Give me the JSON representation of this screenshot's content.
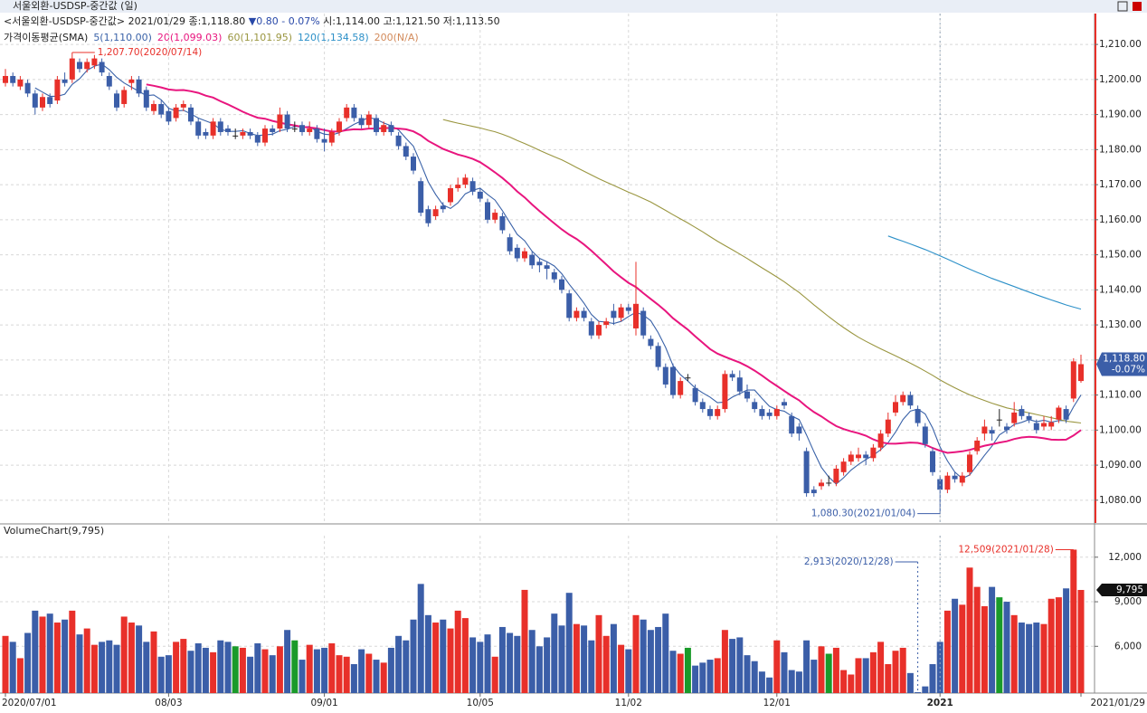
{
  "chart_data": [
    {
      "type": "candlestick",
      "title": "서울외환-USDSP-중간값 (일)",
      "info": "<서울외환-USDSP-중간값> 2021/01/29 종:1,118.80",
      "change": "▼0.80  - 0.07%",
      "ohlc_text": "시:1,114.00 고:1,121.50 저:1,113.50",
      "ma_title": "가격이동평균(SMA)",
      "ma": [
        {
          "name": "5(1,110.00)",
          "period": 5,
          "color": "#3a62a8"
        },
        {
          "name": "20(1,099.03)",
          "period": 20,
          "color": "#e8157e"
        },
        {
          "name": "60(1,101.95)",
          "period": 60,
          "color": "#9a9640"
        },
        {
          "name": "120(1,134.58)",
          "period": 120,
          "color": "#2c90c8"
        },
        {
          "name": "200(N/A)",
          "period": 200,
          "color": "#d28a5a"
        }
      ],
      "up_color": "#e8302a",
      "down_color": "#3b5ea8",
      "annotations": [
        "1,207.70(2020/07/14)",
        "1,080.30(2021/01/04)"
      ],
      "last_label": "1,118.80",
      "change_label": "-0.07%",
      "ylim": [
        1073.5,
        1218.8
      ],
      "yticks": [
        {
          "value": 1080,
          "label": "1,080.00"
        },
        {
          "value": 1090,
          "label": "1,090.00"
        },
        {
          "value": 1100,
          "label": "1,100.00"
        },
        {
          "value": 1110,
          "label": "1,110.00"
        },
        {
          "value": 1120,
          "label": "1,120.00"
        },
        {
          "value": 1130,
          "label": "1,130.00"
        },
        {
          "value": 1140,
          "label": "1,140.00"
        },
        {
          "value": 1150,
          "label": "1,150.00"
        },
        {
          "value": 1160,
          "label": "1,160.00"
        },
        {
          "value": 1170,
          "label": "1,170.00"
        },
        {
          "value": 1180,
          "label": "1,180.00"
        },
        {
          "value": 1190,
          "label": "1,190.00"
        },
        {
          "value": 1200,
          "label": "1,200.00"
        },
        {
          "value": 1210,
          "label": "1,210.00"
        }
      ],
      "grid": true,
      "ohlc": [
        [
          1199,
          1203,
          1198,
          1201
        ],
        [
          1201,
          1202,
          1198,
          1199
        ],
        [
          1198,
          1201,
          1197,
          1200
        ],
        [
          1199,
          1200,
          1195,
          1196
        ],
        [
          1196,
          1197,
          1190,
          1192
        ],
        [
          1192,
          1196,
          1191,
          1195
        ],
        [
          1195,
          1196,
          1192,
          1193
        ],
        [
          1194,
          1201,
          1193,
          1200
        ],
        [
          1200,
          1202,
          1198,
          1199
        ],
        [
          1200,
          1207.7,
          1199,
          1206
        ],
        [
          1205,
          1206,
          1202,
          1203
        ],
        [
          1203,
          1206,
          1202,
          1205
        ],
        [
          1204,
          1207,
          1203,
          1206
        ],
        [
          1205,
          1206,
          1201,
          1202
        ],
        [
          1201,
          1202,
          1197,
          1198
        ],
        [
          1196,
          1197,
          1191,
          1192
        ],
        [
          1193,
          1198,
          1192,
          1197
        ],
        [
          1199,
          1201,
          1197,
          1200
        ],
        [
          1200,
          1201,
          1195,
          1196
        ],
        [
          1197,
          1198,
          1191,
          1192
        ],
        [
          1191,
          1194,
          1190,
          1193
        ],
        [
          1193,
          1194,
          1189,
          1190
        ],
        [
          1191,
          1192,
          1187,
          1188
        ],
        [
          1189,
          1193,
          1188,
          1192
        ],
        [
          1192,
          1194,
          1191,
          1193
        ],
        [
          1192,
          1193,
          1187,
          1188
        ],
        [
          1188,
          1189,
          1183,
          1184
        ],
        [
          1185,
          1186,
          1183,
          1184
        ],
        [
          1184,
          1189,
          1183,
          1188
        ],
        [
          1188,
          1189,
          1184,
          1185
        ],
        [
          1186,
          1187,
          1184,
          1185
        ],
        [
          1184,
          1186,
          1183,
          1184
        ],
        [
          1184,
          1186,
          1183,
          1185
        ],
        [
          1185,
          1186,
          1183,
          1184
        ],
        [
          1184,
          1185,
          1181,
          1182
        ],
        [
          1182,
          1187,
          1181,
          1186
        ],
        [
          1186,
          1187,
          1184,
          1185
        ],
        [
          1186,
          1192,
          1185,
          1190
        ],
        [
          1190,
          1191,
          1185,
          1186
        ],
        [
          1186,
          1188,
          1185,
          1186
        ],
        [
          1187,
          1188,
          1184,
          1185
        ],
        [
          1185,
          1188,
          1184,
          1186
        ],
        [
          1186,
          1187,
          1182,
          1183
        ],
        [
          1183,
          1186,
          1179.5,
          1182
        ],
        [
          1182,
          1186,
          1181,
          1185
        ],
        [
          1185,
          1189,
          1184,
          1188
        ],
        [
          1189,
          1193,
          1188,
          1192
        ],
        [
          1192,
          1193,
          1188,
          1189
        ],
        [
          1189,
          1190,
          1186,
          1187
        ],
        [
          1187,
          1191,
          1186,
          1190
        ],
        [
          1189,
          1190,
          1184,
          1185
        ],
        [
          1185,
          1188,
          1184,
          1187
        ],
        [
          1187,
          1188,
          1184,
          1185
        ],
        [
          1184,
          1185,
          1180,
          1181
        ],
        [
          1181,
          1182,
          1177,
          1178
        ],
        [
          1178,
          1179,
          1173,
          1174
        ],
        [
          1171,
          1172,
          1161,
          1162
        ],
        [
          1163,
          1164,
          1158,
          1159
        ],
        [
          1161,
          1164,
          1160,
          1163
        ],
        [
          1164,
          1165,
          1162,
          1163
        ],
        [
          1165,
          1170,
          1164,
          1169
        ],
        [
          1169,
          1172,
          1168,
          1170
        ],
        [
          1170,
          1173,
          1169,
          1172
        ],
        [
          1171,
          1172,
          1167,
          1168
        ],
        [
          1168,
          1169,
          1165,
          1166
        ],
        [
          1165,
          1166,
          1159,
          1160
        ],
        [
          1160,
          1163,
          1159,
          1162
        ],
        [
          1161,
          1162,
          1156,
          1157
        ],
        [
          1155,
          1156,
          1150,
          1151
        ],
        [
          1152,
          1153,
          1148,
          1149
        ],
        [
          1149,
          1152,
          1148,
          1151
        ],
        [
          1150,
          1151,
          1146,
          1147
        ],
        [
          1148,
          1149,
          1145,
          1147
        ],
        [
          1147,
          1148,
          1143,
          1146
        ],
        [
          1145,
          1146,
          1142,
          1143
        ],
        [
          1143,
          1144,
          1139,
          1140
        ],
        [
          1139,
          1140,
          1131,
          1132
        ],
        [
          1132,
          1135,
          1131,
          1134
        ],
        [
          1134,
          1135,
          1131,
          1132
        ],
        [
          1131,
          1132,
          1126,
          1127
        ],
        [
          1127,
          1131,
          1126,
          1130
        ],
        [
          1130,
          1132,
          1129,
          1131
        ],
        [
          1134,
          1136,
          1130,
          1132
        ],
        [
          1132,
          1136,
          1131,
          1135
        ],
        [
          1135,
          1136,
          1133,
          1134
        ],
        [
          1129,
          1148,
          1127,
          1136
        ],
        [
          1134,
          1135,
          1126,
          1127
        ],
        [
          1126,
          1127,
          1123,
          1124
        ],
        [
          1124,
          1125,
          1117,
          1118
        ],
        [
          1118,
          1119,
          1112,
          1113
        ],
        [
          1118,
          1119,
          1109,
          1110
        ],
        [
          1110,
          1115,
          1109,
          1114
        ],
        [
          1115,
          1116,
          1114,
          1115
        ],
        [
          1112,
          1113,
          1107,
          1108
        ],
        [
          1108,
          1109,
          1105,
          1106
        ],
        [
          1106,
          1107,
          1103,
          1104
        ],
        [
          1104,
          1107,
          1103,
          1106
        ],
        [
          1106,
          1117,
          1105,
          1116
        ],
        [
          1116,
          1117,
          1114,
          1115
        ],
        [
          1115,
          1117,
          1110,
          1111
        ],
        [
          1111,
          1113,
          1108,
          1109
        ],
        [
          1108,
          1109,
          1105,
          1106
        ],
        [
          1106,
          1107,
          1103,
          1104
        ],
        [
          1105,
          1106,
          1103,
          1104
        ],
        [
          1104,
          1107,
          1103,
          1106
        ],
        [
          1108,
          1109,
          1106,
          1107
        ],
        [
          1104,
          1105,
          1098,
          1099
        ],
        [
          1101,
          1102,
          1097,
          1099
        ],
        [
          1094,
          1095,
          1081,
          1082
        ],
        [
          1083,
          1084,
          1081,
          1082
        ],
        [
          1084,
          1086,
          1083,
          1085
        ],
        [
          1085,
          1087,
          1084,
          1085
        ],
        [
          1085,
          1090,
          1084,
          1089
        ],
        [
          1088,
          1092,
          1087,
          1091
        ],
        [
          1091,
          1094,
          1090,
          1093
        ],
        [
          1092,
          1095,
          1091,
          1093
        ],
        [
          1093,
          1094,
          1090,
          1092
        ],
        [
          1092,
          1096,
          1091,
          1095
        ],
        [
          1095,
          1100,
          1094,
          1099
        ],
        [
          1099,
          1105,
          1098,
          1103
        ],
        [
          1105,
          1110,
          1104,
          1108
        ],
        [
          1108,
          1111,
          1107,
          1110
        ],
        [
          1110,
          1111,
          1106,
          1107
        ],
        [
          1106,
          1107,
          1101,
          1102
        ],
        [
          1101,
          1102,
          1095,
          1096
        ],
        [
          1094,
          1095,
          1087,
          1088
        ],
        [
          1086,
          1087,
          1080.3,
          1083
        ],
        [
          1083,
          1088,
          1082,
          1087
        ],
        [
          1087,
          1088,
          1085,
          1086
        ],
        [
          1085,
          1088,
          1084,
          1087
        ],
        [
          1088,
          1094,
          1087,
          1093
        ],
        [
          1094,
          1098,
          1093,
          1097
        ],
        [
          1099,
          1103,
          1097,
          1101
        ],
        [
          1100,
          1101,
          1097,
          1099
        ],
        [
          1103,
          1106,
          1101,
          1103
        ],
        [
          1101,
          1102,
          1099,
          1100
        ],
        [
          1102,
          1108,
          1101,
          1105
        ],
        [
          1106,
          1107,
          1103,
          1104
        ],
        [
          1104,
          1105,
          1102,
          1103
        ],
        [
          1102,
          1103,
          1099,
          1100
        ],
        [
          1101,
          1104,
          1100,
          1102
        ],
        [
          1101,
          1104,
          1100,
          1102.2
        ],
        [
          1103,
          1107,
          1102,
          1106.4
        ],
        [
          1106,
          1107,
          1102,
          1103
        ],
        [
          1109,
          1120.5,
          1108,
          1119.6
        ],
        [
          1114,
          1121.5,
          1113.5,
          1118.8
        ]
      ]
    },
    {
      "type": "bar",
      "title": "VolumeChart(9,795)",
      "equal_color": "#1a9a2a",
      "annotations": [
        "2,913(2020/12/28)",
        "12,509(2021/01/28)"
      ],
      "last_label": "9,795",
      "ylim": [
        2850,
        13450
      ],
      "yticks": [
        {
          "value": 6000,
          "label": "6,000"
        },
        {
          "value": 9000,
          "label": "9,000"
        },
        {
          "value": 12000,
          "label": "12,000"
        }
      ],
      "xticks": [
        {
          "value": 0,
          "label": "2020/07/01"
        },
        {
          "value": 22,
          "label": "08/03"
        },
        {
          "value": 43,
          "label": "09/01"
        },
        {
          "value": 64,
          "label": "10/05"
        },
        {
          "value": 84,
          "label": "11/02"
        },
        {
          "value": 104,
          "label": "12/01"
        },
        {
          "value": 126,
          "label": "2021"
        },
        {
          "value": 145,
          "label": "2021/01/29"
        }
      ],
      "values": [
        6700,
        6300,
        5200,
        6900,
        8400,
        8000,
        8200,
        7600,
        7800,
        8400,
        6800,
        7200,
        6100,
        6300,
        6400,
        6100,
        8000,
        7600,
        7400,
        6300,
        7000,
        5300,
        5400,
        6300,
        6500,
        5700,
        6200,
        5900,
        5600,
        6400,
        6300,
        6000,
        5900,
        5300,
        6200,
        5800,
        5400,
        6000,
        7100,
        6400,
        5100,
        6100,
        5800,
        5900,
        6200,
        5400,
        5300,
        4800,
        5800,
        5500,
        5100,
        4900,
        5900,
        6700,
        6400,
        7800,
        10200,
        8100,
        7600,
        7800,
        7200,
        8400,
        7900,
        6600,
        6300,
        6800,
        5300,
        7300,
        6900,
        6700,
        9800,
        7100,
        6000,
        6600,
        8200,
        7400,
        9600,
        7500,
        7400,
        6400,
        8100,
        6700,
        7500,
        6100,
        5800,
        8100,
        7800,
        7100,
        7300,
        8200,
        5700,
        5500,
        5900,
        4700,
        4900,
        5100,
        5200,
        7100,
        6500,
        6600,
        5400,
        5000,
        4300,
        3900,
        6400,
        5600,
        4400,
        4300,
        6400,
        5100,
        6000,
        5500,
        5900,
        4400,
        4100,
        5200,
        5200,
        5600,
        6300,
        4800,
        5700,
        5900,
        4200,
        2913,
        3300,
        4800,
        6300,
        8400,
        9200,
        8800,
        11300,
        10000,
        8700,
        10000,
        9300,
        9000,
        8100,
        7600,
        7500,
        7600,
        7500,
        9200,
        9300,
        9900,
        12509,
        9795
      ]
    }
  ]
}
